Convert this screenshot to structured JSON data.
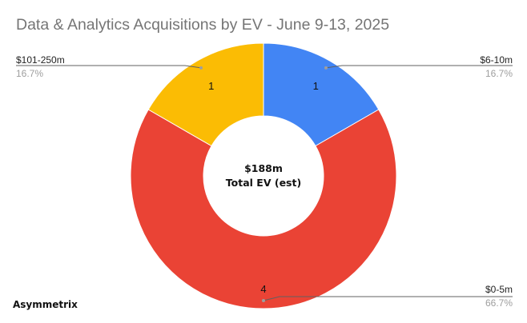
{
  "chart_data": {
    "type": "pie",
    "title": "Data & Analytics Acquisitions by EV - June 9-13, 2025",
    "donut": true,
    "center_value": "$188m",
    "center_label": "Total EV (est)",
    "slices": [
      {
        "label": "$6-10m",
        "value": 1,
        "percent": "16.7%",
        "color": "#4285F4"
      },
      {
        "label": "$0-5m",
        "value": 4,
        "percent": "66.7%",
        "color": "#EA4335"
      },
      {
        "label": "$101-250m",
        "value": 1,
        "percent": "16.7%",
        "color": "#FBBC04"
      }
    ],
    "legend": "none",
    "watermark": "Asymmetrix"
  }
}
